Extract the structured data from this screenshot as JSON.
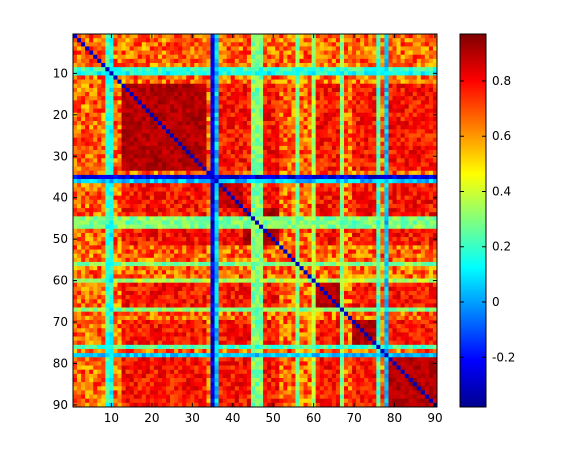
{
  "chart_data": {
    "type": "heatmap",
    "title": "",
    "xlabel": "",
    "ylabel": "",
    "matrix_size": 90,
    "x_ticks": [
      10,
      20,
      30,
      40,
      50,
      60,
      70,
      80,
      90
    ],
    "y_ticks": [
      10,
      20,
      30,
      40,
      50,
      60,
      70,
      80,
      90
    ],
    "xlim": [
      0.5,
      90.5
    ],
    "ylim": [
      0.5,
      90.5
    ],
    "y_axis_reversed": true,
    "colormap": "jet",
    "clim": [
      -0.38,
      0.97
    ],
    "colorbar_ticks": [
      -0.2,
      0,
      0.2,
      0.4,
      0.6,
      0.8
    ],
    "colorbar_tick_labels": [
      "-0.2",
      "0",
      "0.2",
      "0.4",
      "0.6",
      "0.8"
    ],
    "diagonal_value": -0.3,
    "base_value": 0.66,
    "low_correlation_nodes": [
      {
        "index": 9,
        "value": 0.2
      },
      {
        "index": 10,
        "value": 0.15
      },
      {
        "index": 35,
        "value": -0.25
      },
      {
        "index": 36,
        "value": 0.05
      },
      {
        "index": 45,
        "value": 0.3
      },
      {
        "index": 46,
        "value": 0.28
      },
      {
        "index": 47,
        "value": 0.3
      },
      {
        "index": 56,
        "value": 0.3
      },
      {
        "index": 60,
        "value": 0.35
      },
      {
        "index": 67,
        "value": 0.3
      },
      {
        "index": 76,
        "value": 0.22
      },
      {
        "index": 78,
        "value": 0.05
      }
    ],
    "high_correlation_blocks": [
      {
        "range": [
          13,
          33
        ],
        "value": 0.9
      },
      {
        "range": [
          37,
          42
        ],
        "value": 0.88
      },
      {
        "range": [
          43,
          51
        ],
        "value": 0.92
      },
      {
        "range": [
          60,
          66
        ],
        "value": 0.9
      },
      {
        "range": [
          70,
          76
        ],
        "value": 0.9
      },
      {
        "range": [
          79,
          90
        ],
        "value": 0.9
      }
    ]
  }
}
